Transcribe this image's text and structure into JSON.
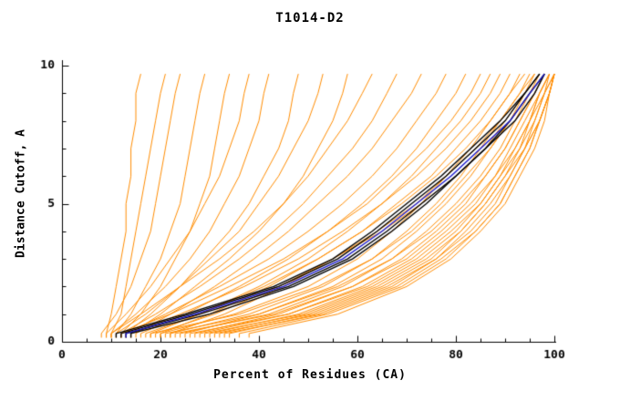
{
  "chart_data": {
    "type": "line",
    "title": "T1014-D2",
    "xlabel": "Percent of Residues (CA)",
    "ylabel": "Distance Cutoff, A",
    "xlim": [
      0,
      100
    ],
    "ylim": [
      0,
      10
    ],
    "x_ticks": [
      0,
      20,
      40,
      60,
      80,
      100
    ],
    "y_ticks": [
      0,
      5,
      10
    ],
    "x_minor_step": 5,
    "y_minor_step": 1,
    "grid": false,
    "legend": "none",
    "colors": {
      "ensemble": "#ff8c00",
      "highlight": "#000000",
      "best": "#1a1acc",
      "axis": "#000000"
    },
    "cutoff_levels": [
      0.3,
      1,
      2,
      3,
      4,
      5,
      6,
      7,
      8,
      9,
      9.7
    ],
    "ensemble_curves": [
      [
        9,
        10,
        11,
        12,
        13,
        13,
        14,
        14,
        15,
        15,
        16
      ],
      [
        10,
        12,
        13,
        14,
        15,
        16,
        17,
        18,
        19,
        20,
        21
      ],
      [
        8,
        11,
        14,
        16,
        18,
        19,
        20,
        21,
        22,
        23,
        24
      ],
      [
        11,
        14,
        17,
        20,
        22,
        24,
        25,
        26,
        27,
        28,
        29
      ],
      [
        12,
        16,
        20,
        23,
        26,
        28,
        30,
        31,
        32,
        33,
        34
      ],
      [
        9,
        13,
        18,
        22,
        26,
        29,
        32,
        34,
        36,
        37,
        38
      ],
      [
        10,
        15,
        21,
        26,
        30,
        33,
        36,
        38,
        40,
        41,
        42
      ],
      [
        13,
        18,
        24,
        29,
        34,
        38,
        41,
        44,
        46,
        47,
        48
      ],
      [
        11,
        17,
        24,
        30,
        36,
        40,
        44,
        47,
        50,
        52,
        53
      ],
      [
        14,
        20,
        27,
        34,
        40,
        45,
        49,
        52,
        55,
        57,
        58
      ],
      [
        10,
        16,
        24,
        32,
        39,
        45,
        50,
        54,
        58,
        61,
        63
      ],
      [
        12,
        19,
        28,
        36,
        43,
        49,
        54,
        59,
        63,
        66,
        68
      ],
      [
        15,
        22,
        31,
        39,
        46,
        52,
        58,
        63,
        67,
        71,
        73
      ],
      [
        13,
        21,
        32,
        42,
        50,
        57,
        63,
        68,
        72,
        76,
        78
      ],
      [
        16,
        25,
        36,
        46,
        54,
        61,
        67,
        72,
        76,
        80,
        82
      ],
      [
        12,
        22,
        34,
        45,
        54,
        62,
        68,
        74,
        79,
        83,
        85
      ],
      [
        18,
        28,
        40,
        50,
        58,
        65,
        71,
        76,
        81,
        85,
        87
      ],
      [
        14,
        24,
        37,
        48,
        57,
        65,
        72,
        78,
        83,
        87,
        89
      ],
      [
        20,
        30,
        42,
        52,
        61,
        68,
        75,
        80,
        85,
        89,
        91
      ],
      [
        17,
        28,
        41,
        52,
        61,
        69,
        76,
        82,
        87,
        91,
        93
      ],
      [
        22,
        33,
        45,
        55,
        64,
        72,
        78,
        84,
        89,
        93,
        95
      ],
      [
        19,
        31,
        44,
        55,
        65,
        73,
        80,
        86,
        90,
        94,
        96
      ],
      [
        20,
        35,
        50,
        60,
        67,
        73,
        78,
        83,
        87,
        91,
        94
      ],
      [
        22,
        38,
        53,
        63,
        70,
        76,
        81,
        85,
        89,
        93,
        96
      ],
      [
        25,
        40,
        55,
        65,
        72,
        78,
        83,
        87,
        91,
        94,
        97
      ],
      [
        18,
        36,
        52,
        63,
        71,
        77,
        82,
        87,
        91,
        95,
        97
      ],
      [
        24,
        42,
        57,
        67,
        74,
        80,
        85,
        89,
        92,
        95,
        98
      ],
      [
        27,
        44,
        59,
        69,
        76,
        82,
        86,
        90,
        93,
        96,
        98
      ],
      [
        21,
        40,
        56,
        67,
        75,
        81,
        86,
        90,
        93,
        96,
        98
      ],
      [
        28,
        46,
        61,
        71,
        78,
        84,
        88,
        92,
        95,
        97,
        99
      ],
      [
        23,
        43,
        59,
        70,
        77,
        83,
        88,
        91,
        94,
        97,
        99
      ],
      [
        30,
        48,
        63,
        73,
        80,
        85,
        89,
        93,
        95,
        98,
        99
      ],
      [
        26,
        46,
        62,
        72,
        79,
        85,
        89,
        92,
        95,
        97,
        99
      ],
      [
        32,
        50,
        65,
        75,
        81,
        86,
        90,
        93,
        96,
        98,
        100
      ],
      [
        29,
        49,
        64,
        74,
        81,
        86,
        90,
        94,
        96,
        98,
        100
      ],
      [
        34,
        52,
        67,
        76,
        83,
        88,
        91,
        94,
        97,
        99,
        100
      ],
      [
        31,
        51,
        66,
        76,
        82,
        87,
        91,
        94,
        97,
        99,
        100
      ],
      [
        36,
        54,
        69,
        78,
        84,
        89,
        92,
        95,
        97,
        99,
        100
      ],
      [
        33,
        53,
        68,
        77,
        84,
        89,
        92,
        95,
        97,
        99,
        100
      ],
      [
        38,
        56,
        70,
        79,
        85,
        90,
        93,
        96,
        98,
        99,
        100
      ]
    ],
    "highlight_curves": [
      [
        12,
        26,
        44,
        56,
        64,
        71,
        78,
        84,
        90,
        94,
        97
      ],
      [
        13,
        28,
        46,
        58,
        66,
        73,
        80,
        86,
        91,
        95,
        98
      ],
      [
        11,
        25,
        43,
        55,
        63,
        70,
        77,
        83,
        89,
        94,
        97
      ],
      [
        14,
        30,
        47,
        59,
        67,
        74,
        80,
        86,
        92,
        96,
        98
      ]
    ],
    "best_curve": [
      13,
      27,
      45,
      57,
      65,
      72,
      79,
      85,
      91,
      95,
      98
    ]
  },
  "layout_labels": {
    "title": "T1014-D2",
    "xlabel": "Percent of Residues (CA)",
    "ylabel": "Distance Cutoff, A"
  }
}
